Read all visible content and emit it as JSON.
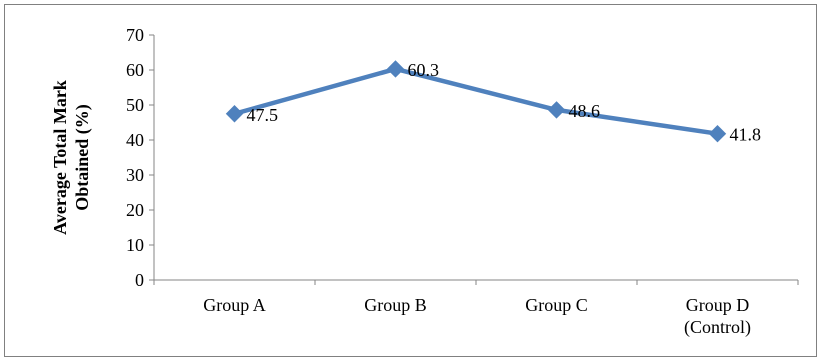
{
  "chart_data": {
    "type": "line",
    "title": "",
    "xlabel": "",
    "ylabel_lines": [
      "Average Total Mark",
      "Obtained (%)"
    ],
    "ylim": [
      0,
      70
    ],
    "yticks": [
      0,
      10,
      20,
      30,
      40,
      50,
      60,
      70
    ],
    "categories": [
      [
        "Group A"
      ],
      [
        "Group B"
      ],
      [
        "Group C"
      ],
      [
        "Group D",
        "(Control)"
      ]
    ],
    "series": [
      {
        "values": [
          47.5,
          60.3,
          48.6,
          41.8
        ],
        "data_labels": [
          "47.5",
          "60.3",
          "48.6",
          "41.8"
        ]
      }
    ],
    "line_color": "#4F81BD",
    "grid": false,
    "legend": "none"
  }
}
